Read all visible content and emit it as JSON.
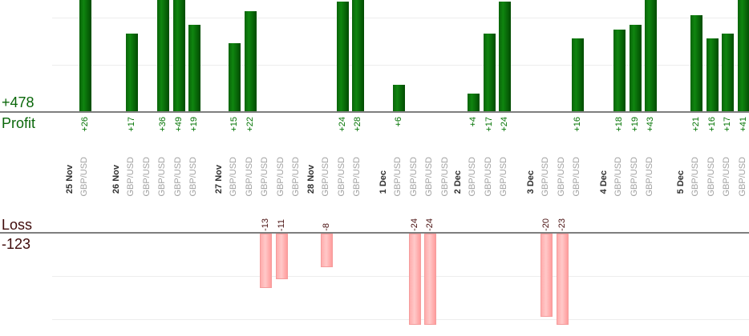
{
  "chart_data": {
    "type": "bar",
    "description": "Daily trading results split into an upper Profit bar section and a lower Loss bar section, one bar per trade, grouped by date",
    "sections": {
      "profit": {
        "label": "Profit",
        "total": "+478",
        "gridlines_at": [
          10,
          20
        ],
        "visible_value_range": [
          0,
          24
        ]
      },
      "loss": {
        "label": "Loss",
        "total": "-123",
        "gridlines_at": [
          -10,
          -20
        ],
        "visible_value_range": [
          0,
          -22
        ]
      }
    },
    "colors": {
      "profit_bar": "#0a640a",
      "loss_bar": "#ffadad",
      "profit_text": "#057505",
      "loss_text": "#4a1111",
      "date_text": "#2f2f2f",
      "symbol_text": "#a2a2a2",
      "axis_line": "#7f7f7f",
      "gridline": "#ededed"
    },
    "days": [
      {
        "date": "25 Nov",
        "trades": [
          {
            "symbol": "GBP/USD",
            "profit": 26,
            "label": "+26"
          }
        ]
      },
      {
        "date": "26 Nov",
        "trades": [
          {
            "symbol": "GBP/USD",
            "profit": 17,
            "label": "+17"
          },
          {
            "symbol": "GBP/USD",
            "profit": 0,
            "label": ""
          },
          {
            "symbol": "GBP/USD",
            "profit": 36,
            "label": "+36"
          },
          {
            "symbol": "GBP/USD",
            "profit": 49,
            "label": "+49"
          },
          {
            "symbol": "GBP/USD",
            "profit": 19,
            "label": "+19"
          }
        ]
      },
      {
        "date": "27 Nov",
        "trades": [
          {
            "symbol": "GBP/USD",
            "profit": 15,
            "label": "+15"
          },
          {
            "symbol": "GBP/USD",
            "profit": 22,
            "label": "+22"
          },
          {
            "symbol": "GBP/USD",
            "profit": -13,
            "label": "-13"
          },
          {
            "symbol": "GBP/USD",
            "profit": -11,
            "label": "-11"
          },
          {
            "symbol": "GBP/USD",
            "profit": 0,
            "label": ""
          }
        ]
      },
      {
        "date": "28 Nov",
        "trades": [
          {
            "symbol": "GBP/USD",
            "profit": -8,
            "label": "-8"
          },
          {
            "symbol": "GBP/USD",
            "profit": 24,
            "label": "+24"
          },
          {
            "symbol": "GBP/USD",
            "profit": 28,
            "label": "+28"
          }
        ]
      },
      {
        "date": "1 Dec",
        "trades": [
          {
            "symbol": "GBP/USD",
            "profit": 6,
            "label": "+6"
          },
          {
            "symbol": "GBP/USD",
            "profit": -24,
            "label": "-24"
          },
          {
            "symbol": "GBP/USD",
            "profit": -24,
            "label": "-24"
          },
          {
            "symbol": "GBP/USD",
            "profit": 0,
            "label": ""
          }
        ]
      },
      {
        "date": "2 Dec",
        "trades": [
          {
            "symbol": "GBP/USD",
            "profit": 4,
            "label": "+4"
          },
          {
            "symbol": "GBP/USD",
            "profit": 17,
            "label": "+17"
          },
          {
            "symbol": "GBP/USD",
            "profit": 24,
            "label": "+24"
          }
        ]
      },
      {
        "date": "3 Dec",
        "trades": [
          {
            "symbol": "GBP/USD",
            "profit": -20,
            "label": "-20"
          },
          {
            "symbol": "GBP/USD",
            "profit": -23,
            "label": "-23"
          },
          {
            "symbol": "GBP/USD",
            "profit": 16,
            "label": "+16"
          }
        ]
      },
      {
        "date": "4 Dec",
        "trades": [
          {
            "symbol": "GBP/USD",
            "profit": 18,
            "label": "+18"
          },
          {
            "symbol": "GBP/USD",
            "profit": 19,
            "label": "+19"
          },
          {
            "symbol": "GBP/USD",
            "profit": 43,
            "label": "+43"
          }
        ]
      },
      {
        "date": "5 Dec",
        "trades": [
          {
            "symbol": "GBP/USD",
            "profit": 21,
            "label": "+21"
          },
          {
            "symbol": "GBP/USD",
            "profit": 16,
            "label": "+16"
          },
          {
            "symbol": "GBP/USD",
            "profit": 17,
            "label": "+17"
          },
          {
            "symbol": "GBP/USD",
            "profit": 41,
            "label": "+41"
          }
        ]
      }
    ]
  }
}
